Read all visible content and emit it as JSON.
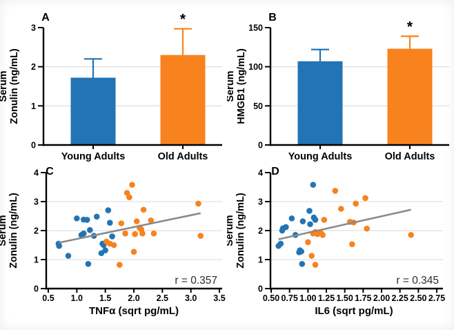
{
  "figure": {
    "groups": [
      "Young Adults",
      "Old Adults"
    ],
    "colors": {
      "young_adults": "#2274b5",
      "old_adults": "#f8821d",
      "regression_line": "#8a8a8a",
      "gridline": "#e0e0e0",
      "axis": "#000000",
      "annotation_text": "#2b2b2b"
    }
  },
  "chart_data": [
    {
      "id": "A",
      "type": "bar",
      "panel_letter": "A",
      "categories": [
        "Young Adults",
        "Old Adults"
      ],
      "values": [
        1.72,
        2.3
      ],
      "error_upper": [
        0.48,
        0.67
      ],
      "bar_colors": [
        "#2274b5",
        "#f8821d"
      ],
      "ylabel": "Serum Zonulin (ng/mL)",
      "ylabel_lines": [
        "Serum",
        "Zonulin (ng/mL)"
      ],
      "ylim": [
        0,
        3
      ],
      "yticks": [
        0,
        1,
        2,
        3
      ],
      "ytick_labels": [
        "0",
        "1",
        "2",
        "3"
      ],
      "grid": "horizontal-interior",
      "significance": {
        "category": "Old Adults",
        "symbol": "*"
      }
    },
    {
      "id": "B",
      "type": "bar",
      "panel_letter": "B",
      "categories": [
        "Young Adults",
        "Old Adults"
      ],
      "values": [
        107,
        123
      ],
      "error_upper": [
        15,
        16
      ],
      "bar_colors": [
        "#2274b5",
        "#f8821d"
      ],
      "ylabel": "Serum HMGB1 (ng/mL)",
      "ylabel_lines": [
        "Serum",
        "HMGB1 (ng/mL)"
      ],
      "ylim": [
        0,
        150
      ],
      "yticks": [
        0,
        50,
        100,
        150
      ],
      "ytick_labels": [
        "0",
        "50",
        "100",
        "150"
      ],
      "grid": "horizontal-interior",
      "significance": {
        "category": "Old Adults",
        "symbol": "*"
      }
    },
    {
      "id": "C",
      "type": "scatter",
      "panel_letter": "C",
      "xlabel": "TNFα (sqrt pg/mL)",
      "ylabel": "Serum Zonulin (ng/mL)",
      "ylabel_lines": [
        "Serum",
        "Zonulin (ng/mL)"
      ],
      "xlim": [
        0.5,
        3.5
      ],
      "ylim": [
        0,
        4
      ],
      "xticks": [
        0.5,
        1.0,
        1.5,
        2.0,
        2.5,
        3.0,
        3.5
      ],
      "xtick_labels": [
        "0.5",
        "1.0",
        "1.5",
        "2.0",
        "2.5",
        "3.0",
        "3.5"
      ],
      "yticks": [
        0,
        1,
        2,
        3,
        4
      ],
      "ytick_labels": [
        "0",
        "1",
        "2",
        "3",
        "4"
      ],
      "annotation": "r = 0.357",
      "grid": "horizontal-interior",
      "series": [
        {
          "name": "Young Adults",
          "color": "#2274b5",
          "points": [
            [
              0.68,
              1.55
            ],
            [
              0.69,
              1.47
            ],
            [
              0.85,
              1.13
            ],
            [
              1.0,
              2.42
            ],
            [
              1.08,
              1.85
            ],
            [
              1.12,
              1.9
            ],
            [
              1.12,
              2.38
            ],
            [
              1.18,
              2.37
            ],
            [
              1.2,
              0.85
            ],
            [
              1.23,
              2.02
            ],
            [
              1.3,
              1.82
            ],
            [
              1.35,
              2.48
            ],
            [
              1.43,
              1.22
            ],
            [
              1.45,
              1.55
            ],
            [
              1.47,
              1.5
            ],
            [
              1.5,
              1.32
            ],
            [
              1.55,
              2.7
            ],
            [
              1.58,
              2.27
            ],
            [
              1.62,
              1.8
            ]
          ]
        },
        {
          "name": "Old Adults",
          "color": "#f8821d",
          "points": [
            [
              1.52,
              1.62
            ],
            [
              1.58,
              1.55
            ],
            [
              1.65,
              1.5
            ],
            [
              1.75,
              0.82
            ],
            [
              1.78,
              2.25
            ],
            [
              1.85,
              1.9
            ],
            [
              1.88,
              3.3
            ],
            [
              1.92,
              3.15
            ],
            [
              1.97,
              3.58
            ],
            [
              2.0,
              1.27
            ],
            [
              2.02,
              1.88
            ],
            [
              2.05,
              2.32
            ],
            [
              2.1,
              2.1
            ],
            [
              2.13,
              2.04
            ],
            [
              2.15,
              1.9
            ],
            [
              2.17,
              2.72
            ],
            [
              2.3,
              2.35
            ],
            [
              2.35,
              1.9
            ],
            [
              3.13,
              2.93
            ],
            [
              3.17,
              1.82
            ]
          ]
        }
      ],
      "regression": {
        "x": [
          0.68,
          3.17
        ],
        "y": [
          1.58,
          2.6
        ]
      }
    },
    {
      "id": "D",
      "type": "scatter",
      "panel_letter": "D",
      "xlabel": "IL6 (sqrt pg/mL)",
      "ylabel": "Serum Zonulin (ng/mL)",
      "ylabel_lines": [
        "Serum",
        "Zonulin (ng/mL)"
      ],
      "xlim": [
        0.5,
        2.75
      ],
      "ylim": [
        0,
        4
      ],
      "xticks": [
        0.5,
        0.75,
        1.0,
        1.25,
        1.5,
        1.75,
        2.0,
        2.25,
        2.5,
        2.75
      ],
      "xtick_labels": [
        "0.50",
        "0.75",
        "1.00",
        "1.25",
        "1.50",
        "1.75",
        "2.00",
        "2.25",
        "2.50",
        "2.75"
      ],
      "yticks": [
        0,
        1,
        2,
        3,
        4
      ],
      "ytick_labels": [
        "0",
        "1",
        "2",
        "3",
        "4"
      ],
      "annotation": "r = 0.345",
      "grid": "horizontal-interior",
      "series": [
        {
          "name": "Young Adults",
          "color": "#2274b5",
          "points": [
            [
              0.6,
              1.47
            ],
            [
              0.63,
              1.55
            ],
            [
              0.65,
              2.0
            ],
            [
              0.66,
              2.08
            ],
            [
              0.7,
              2.12
            ],
            [
              0.78,
              2.42
            ],
            [
              0.83,
              1.85
            ],
            [
              0.88,
              1.25
            ],
            [
              0.89,
              1.32
            ],
            [
              0.91,
              1.28
            ],
            [
              0.92,
              0.85
            ],
            [
              0.93,
              2.32
            ],
            [
              1.02,
              2.68
            ],
            [
              1.03,
              2.22
            ],
            [
              1.07,
              3.58
            ],
            [
              1.08,
              2.45
            ],
            [
              1.1,
              2.37
            ]
          ]
        },
        {
          "name": "Old Adults",
          "color": "#f8821d",
          "points": [
            [
              1.0,
              1.6
            ],
            [
              1.05,
              1.13
            ],
            [
              1.07,
              1.9
            ],
            [
              1.1,
              1.95
            ],
            [
              1.13,
              1.88
            ],
            [
              1.1,
              0.82
            ],
            [
              1.17,
              1.93
            ],
            [
              1.2,
              1.85
            ],
            [
              1.22,
              2.37
            ],
            [
              1.37,
              3.37
            ],
            [
              1.45,
              2.75
            ],
            [
              1.57,
              2.3
            ],
            [
              1.6,
              1.53
            ],
            [
              1.62,
              2.28
            ],
            [
              1.65,
              2.93
            ],
            [
              1.78,
              3.12
            ],
            [
              1.8,
              2.07
            ],
            [
              2.4,
              1.85
            ]
          ]
        }
      ],
      "regression": {
        "x": [
          0.6,
          2.4
        ],
        "y": [
          1.7,
          2.72
        ]
      }
    }
  ]
}
